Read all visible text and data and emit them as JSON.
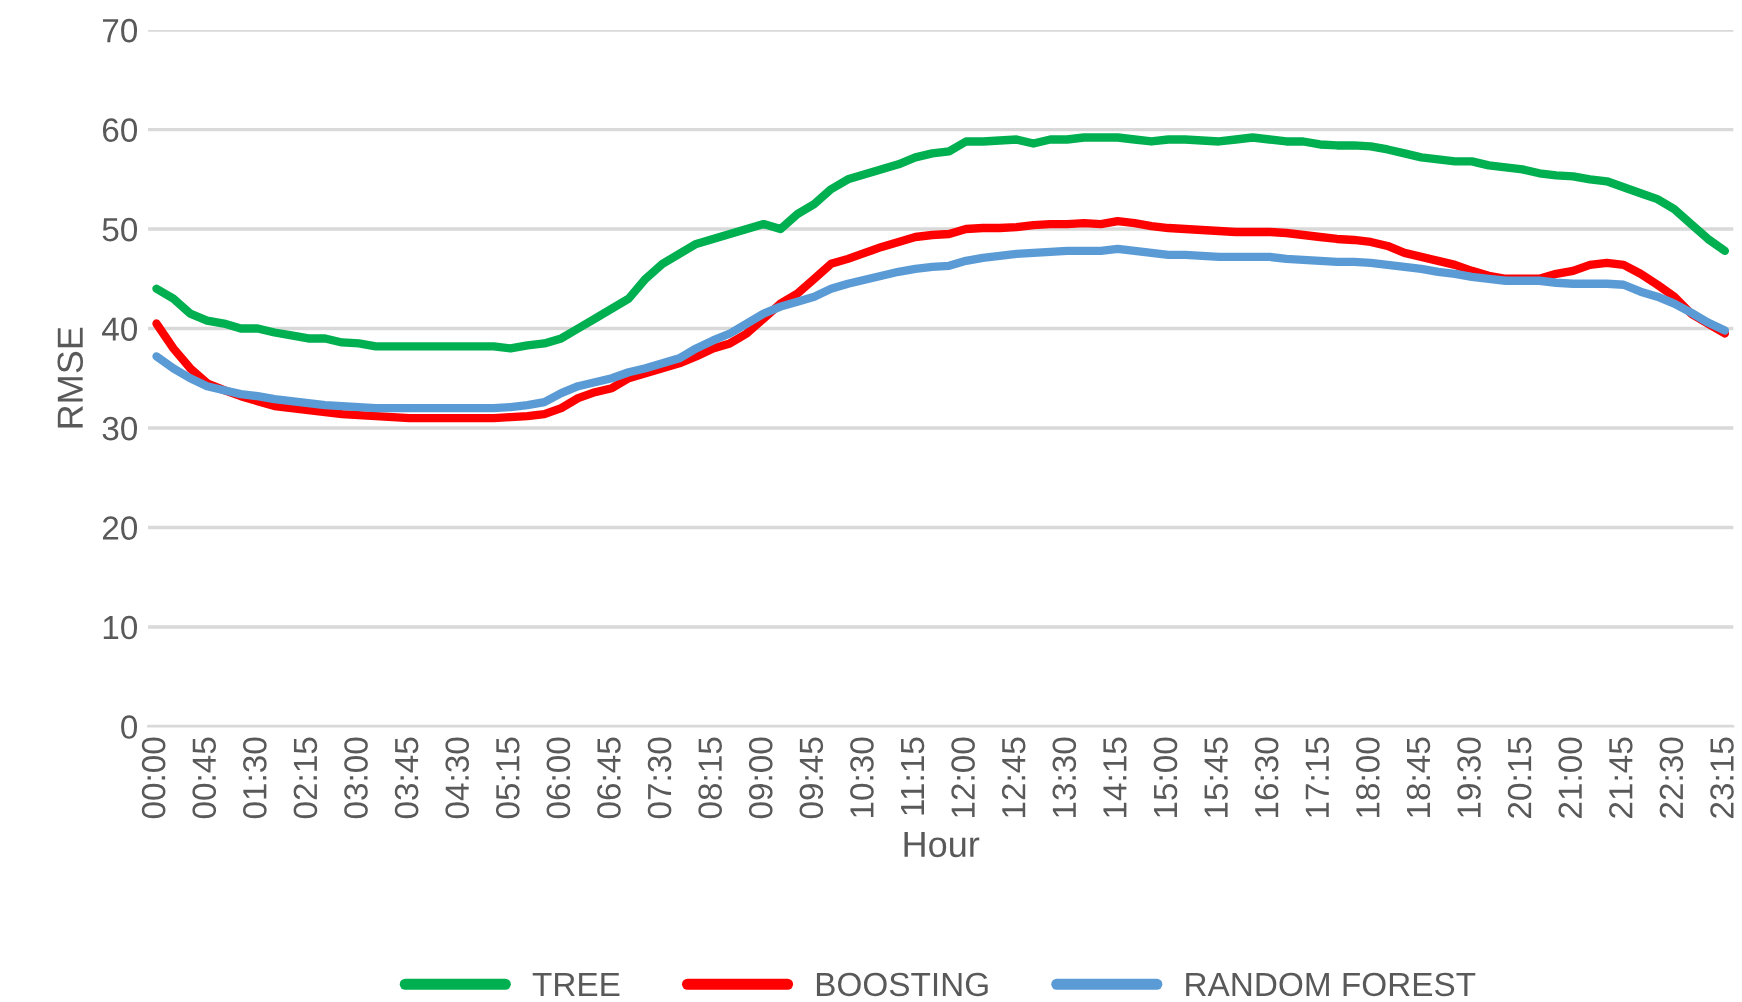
{
  "chart_data": {
    "type": "line",
    "xlabel": "Hour",
    "ylabel": "RMSE",
    "categories": [
      "00:00",
      null,
      null,
      "00:45",
      null,
      null,
      "01:30",
      null,
      null,
      "02:15",
      null,
      null,
      "03:00",
      null,
      null,
      "03:45",
      null,
      null,
      "04:30",
      null,
      null,
      "05:15",
      null,
      null,
      "06:00",
      null,
      null,
      "06:45",
      null,
      null,
      "07:30",
      null,
      null,
      "08:15",
      null,
      null,
      "09:00",
      null,
      null,
      "09:45",
      null,
      null,
      "10:30",
      null,
      null,
      "11:15",
      null,
      null,
      "12:00",
      null,
      null,
      "12:45",
      null,
      null,
      "13:30",
      null,
      null,
      "14:15",
      null,
      null,
      "15:00",
      null,
      null,
      "15:45",
      null,
      null,
      "16:30",
      null,
      null,
      "17:15",
      null,
      null,
      "18:00",
      null,
      null,
      "18:45",
      null,
      null,
      "19:30",
      null,
      null,
      "20:15",
      null,
      null,
      "21:00",
      null,
      null,
      "21:45",
      null,
      null,
      "22:30",
      null,
      null,
      "23:15"
    ],
    "series": [
      {
        "name": "TREE",
        "color": "#00b050",
        "values": [
          44,
          43,
          41.5,
          40.8,
          40.5,
          40,
          40,
          39.6,
          39.3,
          39,
          39,
          38.6,
          38.5,
          38.2,
          38.2,
          38.2,
          38.2,
          38.2,
          38.2,
          38.2,
          38.2,
          38,
          38.3,
          38.5,
          39,
          40,
          41,
          42,
          43,
          45,
          46.5,
          47.5,
          48.5,
          49,
          49.5,
          50,
          50.5,
          50,
          51.5,
          52.5,
          54,
          55,
          55.5,
          56,
          56.5,
          57.2,
          57.6,
          57.8,
          58.8,
          58.8,
          58.9,
          59,
          58.6,
          59,
          59,
          59.2,
          59.2,
          59.2,
          59,
          58.8,
          59,
          59,
          58.9,
          58.8,
          59,
          59.2,
          59,
          58.8,
          58.8,
          58.5,
          58.4,
          58.4,
          58.3,
          58,
          57.6,
          57.2,
          57,
          56.8,
          56.8,
          56.4,
          56.2,
          56,
          55.6,
          55.4,
          55.3,
          55,
          54.8,
          54.2,
          53.6,
          53,
          52,
          50.5,
          49,
          47.8
        ]
      },
      {
        "name": "BOOSTING",
        "color": "#ff0000",
        "values": [
          40.5,
          38,
          36,
          34.5,
          33.8,
          33.2,
          32.7,
          32.2,
          32,
          31.8,
          31.6,
          31.4,
          31.3,
          31.2,
          31.1,
          31,
          31,
          31,
          31,
          31,
          31,
          31.1,
          31.2,
          31.4,
          32,
          33,
          33.6,
          34,
          35,
          35.5,
          36,
          36.5,
          37.2,
          38,
          38.5,
          39.5,
          41,
          42.5,
          43.5,
          45,
          46.5,
          47,
          47.6,
          48.2,
          48.7,
          49.2,
          49.4,
          49.5,
          50,
          50.1,
          50.1,
          50.2,
          50.4,
          50.5,
          50.5,
          50.6,
          50.5,
          50.8,
          50.6,
          50.3,
          50.1,
          50,
          49.9,
          49.8,
          49.7,
          49.7,
          49.7,
          49.6,
          49.4,
          49.2,
          49,
          48.9,
          48.7,
          48.3,
          47.6,
          47.2,
          46.8,
          46.4,
          45.8,
          45.3,
          45,
          45,
          45,
          45.5,
          45.8,
          46.4,
          46.6,
          46.4,
          45.5,
          44.4,
          43.2,
          41.5,
          40.5,
          39.5
        ]
      },
      {
        "name": "RANDOM FOREST",
        "color": "#5b9bd5",
        "values": [
          37.2,
          36,
          35,
          34.2,
          33.8,
          33.4,
          33.2,
          32.9,
          32.7,
          32.5,
          32.3,
          32.2,
          32.1,
          32,
          32,
          32,
          32,
          32,
          32,
          32,
          32,
          32.1,
          32.3,
          32.6,
          33.5,
          34.2,
          34.6,
          35,
          35.6,
          36,
          36.5,
          37,
          38,
          38.8,
          39.5,
          40.5,
          41.5,
          42.2,
          42.7,
          43.2,
          44,
          44.5,
          44.9,
          45.3,
          45.7,
          46,
          46.2,
          46.3,
          46.8,
          47.1,
          47.3,
          47.5,
          47.6,
          47.7,
          47.8,
          47.8,
          47.8,
          48,
          47.8,
          47.6,
          47.4,
          47.4,
          47.3,
          47.2,
          47.2,
          47.2,
          47.2,
          47,
          46.9,
          46.8,
          46.7,
          46.7,
          46.6,
          46.4,
          46.2,
          46,
          45.7,
          45.5,
          45.2,
          45,
          44.8,
          44.8,
          44.8,
          44.6,
          44.5,
          44.5,
          44.5,
          44.4,
          43.7,
          43.2,
          42.5,
          41.6,
          40.6,
          39.8
        ]
      }
    ],
    "ylim": [
      0,
      70
    ],
    "yticks": [
      0,
      10,
      20,
      30,
      40,
      50,
      60,
      70
    ],
    "grid": "y",
    "legend": "bottom",
    "line_style": "solid",
    "marker": "none"
  }
}
